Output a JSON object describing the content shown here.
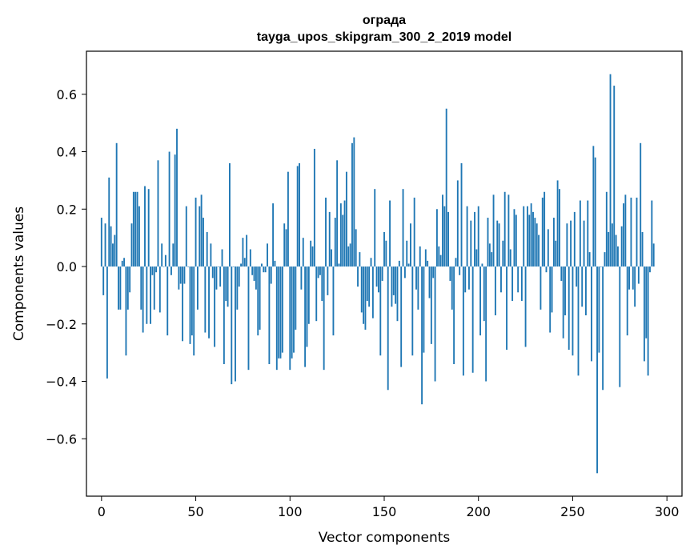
{
  "chart_data": {
    "type": "bar",
    "title": "ограда",
    "subtitle": "tayga_upos_skipgram_300_2_2019 model",
    "xlabel": "Vector components",
    "ylabel": "Components values",
    "xlim": [
      -8,
      308
    ],
    "ylim": [
      -0.8,
      0.75
    ],
    "xticks": [
      0,
      50,
      100,
      150,
      200,
      250,
      300
    ],
    "yticks": [
      -0.6,
      -0.4,
      -0.2,
      0.0,
      0.2,
      0.4,
      0.6
    ],
    "ytick_labels": [
      "−0.6",
      "−0.4",
      "−0.2",
      "0.0",
      "0.2",
      "0.4",
      "0.6"
    ],
    "grid": false,
    "bar_color": "#1f77b4",
    "values": [
      0.17,
      -0.1,
      0.15,
      -0.39,
      0.31,
      0.14,
      0.08,
      0.11,
      0.43,
      -0.15,
      -0.15,
      0.02,
      0.03,
      -0.31,
      -0.15,
      -0.09,
      0.15,
      0.26,
      0.26,
      0.26,
      0.21,
      -0.15,
      -0.23,
      0.28,
      -0.2,
      0.27,
      -0.2,
      -0.03,
      -0.15,
      -0.02,
      0.37,
      -0.16,
      0.08,
      0.0,
      0.04,
      -0.24,
      0.4,
      -0.03,
      0.08,
      0.39,
      0.48,
      -0.08,
      -0.06,
      -0.26,
      -0.06,
      0.21,
      0.0,
      -0.27,
      -0.24,
      -0.31,
      0.24,
      -0.15,
      0.21,
      0.25,
      0.17,
      -0.23,
      0.12,
      -0.25,
      0.08,
      -0.04,
      -0.28,
      -0.08,
      0.0,
      -0.07,
      0.06,
      -0.34,
      -0.12,
      -0.14,
      0.36,
      -0.41,
      0.0,
      -0.4,
      -0.15,
      -0.07,
      0.01,
      0.1,
      0.03,
      0.11,
      -0.36,
      0.06,
      -0.03,
      -0.05,
      -0.08,
      -0.24,
      -0.22,
      0.01,
      -0.02,
      -0.02,
      0.08,
      -0.34,
      -0.06,
      0.22,
      0.02,
      -0.36,
      -0.32,
      -0.32,
      -0.3,
      0.15,
      0.13,
      0.33,
      -0.36,
      -0.32,
      -0.3,
      -0.22,
      0.35,
      0.36,
      -0.08,
      0.1,
      -0.35,
      -0.28,
      -0.2,
      0.09,
      0.07,
      0.41,
      -0.19,
      -0.04,
      -0.03,
      -0.12,
      -0.36,
      0.24,
      -0.1,
      0.19,
      0.06,
      -0.24,
      0.17,
      0.37,
      0.01,
      0.22,
      0.18,
      0.23,
      0.33,
      0.07,
      0.08,
      0.43,
      0.45,
      0.13,
      -0.07,
      0.05,
      -0.16,
      -0.2,
      -0.22,
      -0.12,
      -0.14,
      0.03,
      -0.18,
      0.27,
      -0.07,
      -0.09,
      -0.31,
      -0.05,
      0.12,
      0.09,
      -0.43,
      0.23,
      -0.14,
      -0.1,
      -0.13,
      -0.19,
      0.02,
      -0.35,
      0.27,
      -0.04,
      0.09,
      0.01,
      0.15,
      -0.31,
      0.24,
      -0.08,
      -0.15,
      0.07,
      -0.48,
      -0.3,
      0.06,
      0.02,
      -0.11,
      -0.27,
      -0.04,
      -0.4,
      0.2,
      0.07,
      0.04,
      0.25,
      0.21,
      0.55,
      0.19,
      -0.05,
      -0.15,
      -0.34,
      0.03,
      0.3,
      -0.03,
      0.36,
      -0.38,
      -0.09,
      0.21,
      -0.08,
      0.16,
      -0.37,
      0.19,
      0.06,
      0.21,
      -0.24,
      0.01,
      -0.19,
      -0.4,
      0.17,
      0.08,
      0.05,
      0.25,
      -0.17,
      0.16,
      0.15,
      -0.09,
      0.09,
      0.26,
      -0.29,
      0.25,
      0.06,
      -0.12,
      0.2,
      0.18,
      -0.09,
      0.0,
      -0.12,
      0.21,
      -0.28,
      0.21,
      0.18,
      0.22,
      0.19,
      0.17,
      0.15,
      0.11,
      -0.15,
      0.24,
      0.26,
      -0.02,
      0.13,
      -0.23,
      -0.16,
      0.17,
      0.09,
      0.3,
      0.27,
      -0.05,
      -0.25,
      -0.17,
      0.15,
      -0.29,
      0.16,
      -0.31,
      0.19,
      -0.07,
      -0.38,
      0.23,
      -0.14,
      0.16,
      -0.17,
      0.23,
      0.05,
      -0.33,
      0.42,
      0.38,
      -0.72,
      -0.3,
      0.0,
      -0.43,
      0.05,
      0.26,
      0.12,
      0.67,
      0.15,
      0.63,
      0.11,
      0.07,
      -0.42,
      0.14,
      0.22,
      0.25,
      -0.24,
      -0.08,
      0.24,
      -0.08,
      -0.14,
      0.24,
      -0.06,
      0.43,
      0.12,
      -0.33,
      -0.25,
      -0.38,
      -0.02,
      0.23,
      0.08
    ],
    "series": []
  }
}
